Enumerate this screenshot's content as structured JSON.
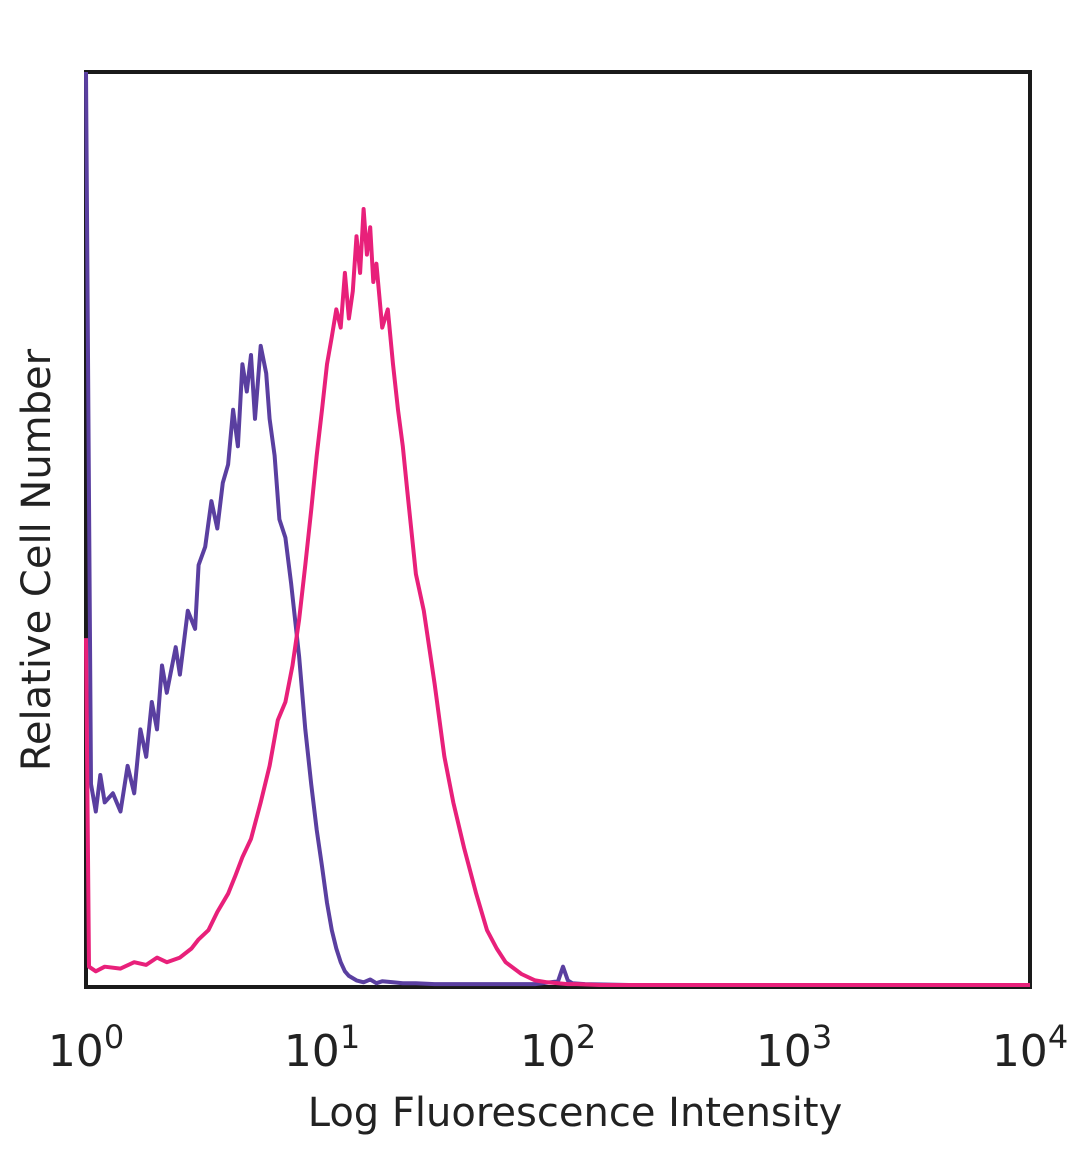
{
  "chart_data": {
    "type": "line",
    "title": "",
    "xlabel": "Log Fluorescence Intensity",
    "ylabel": "Relative Cell Number",
    "x_scale": "log",
    "xlim": [
      1,
      10000
    ],
    "ylim": [
      0,
      100
    ],
    "x_ticks": [
      {
        "value": 1,
        "base": "10",
        "exp": "0"
      },
      {
        "value": 10,
        "base": "10",
        "exp": "1"
      },
      {
        "value": 100,
        "base": "10",
        "exp": "2"
      },
      {
        "value": 1000,
        "base": "10",
        "exp": "3"
      },
      {
        "value": 10000,
        "base": "10",
        "exp": "4"
      }
    ],
    "grid": false,
    "legend": "none",
    "series": [
      {
        "color": "#5a3fa0",
        "x": [
          1.0,
          1.05,
          1.1,
          1.15,
          1.2,
          1.3,
          1.4,
          1.5,
          1.6,
          1.7,
          1.8,
          1.9,
          2.0,
          2.1,
          2.2,
          2.4,
          2.5,
          2.7,
          2.9,
          3.0,
          3.2,
          3.4,
          3.6,
          3.8,
          4.0,
          4.2,
          4.4,
          4.6,
          4.8,
          5.0,
          5.2,
          5.5,
          5.8,
          6.0,
          6.3,
          6.6,
          7.0,
          7.4,
          8.0,
          8.5,
          9.0,
          9.5,
          10.0,
          10.5,
          11.0,
          11.5,
          12.0,
          12.5,
          13.0,
          14.0,
          15.0,
          16.0,
          17.0,
          18.0,
          20.0,
          22.0,
          25.0,
          30.0,
          40.0,
          60.0,
          80.0,
          100.0,
          105.0,
          110.0,
          115.0,
          130.0,
          200.0,
          500.0,
          1000.0,
          5000.0,
          10000.0
        ],
        "y": [
          100,
          22,
          19,
          23,
          20,
          21,
          19,
          24,
          21,
          28,
          25,
          31,
          28,
          35,
          32,
          37,
          34,
          41,
          39,
          46,
          48,
          53,
          50,
          55,
          57,
          63,
          59,
          68,
          65,
          69,
          62,
          70,
          67,
          62,
          58,
          51,
          49,
          44,
          36,
          28,
          22,
          17,
          13,
          9,
          6,
          4,
          2.5,
          1.5,
          1,
          0.5,
          0.3,
          0.6,
          0.2,
          0.4,
          0.3,
          0.2,
          0.2,
          0.1,
          0.1,
          0.1,
          0.1,
          0.4,
          2,
          0.5,
          0.2,
          0.1,
          0,
          0,
          0,
          0,
          0
        ]
      },
      {
        "color": "#e8207a",
        "x": [
          1.0,
          1.03,
          1.1,
          1.2,
          1.4,
          1.6,
          1.8,
          2.0,
          2.2,
          2.5,
          2.8,
          3.0,
          3.3,
          3.6,
          4.0,
          4.3,
          4.6,
          5.0,
          5.5,
          6.0,
          6.5,
          7.0,
          7.5,
          8.0,
          8.5,
          9.0,
          9.5,
          10.0,
          10.5,
          11.0,
          11.5,
          12.0,
          12.5,
          13.0,
          13.5,
          14.0,
          14.5,
          15.0,
          15.5,
          16.0,
          16.5,
          17.0,
          18.0,
          19.0,
          20.0,
          21.0,
          22.0,
          23.0,
          25.0,
          27.0,
          30.0,
          33.0,
          36.0,
          40.0,
          45.0,
          50.0,
          55.0,
          60.0,
          70.0,
          80.0,
          90.0,
          100.0,
          110.0,
          120.0,
          150.0,
          200.0,
          500.0,
          1000.0,
          5000.0,
          10000.0
        ],
        "y": [
          38,
          2,
          1.5,
          2,
          1.8,
          2.5,
          2.2,
          3,
          2.5,
          3,
          4,
          5,
          6,
          8,
          10,
          12,
          14,
          16,
          20,
          24,
          29,
          31,
          35,
          40,
          46,
          52,
          58,
          63,
          68,
          71,
          74,
          72,
          78,
          73,
          76,
          82,
          78,
          85,
          80,
          83,
          77,
          79,
          72,
          74,
          68,
          63,
          59,
          54,
          45,
          41,
          33,
          25,
          20,
          15,
          10,
          6,
          4,
          2.5,
          1.2,
          0.5,
          0.3,
          0.2,
          0.1,
          0.1,
          0,
          0,
          0,
          0,
          0,
          0
        ]
      }
    ]
  }
}
